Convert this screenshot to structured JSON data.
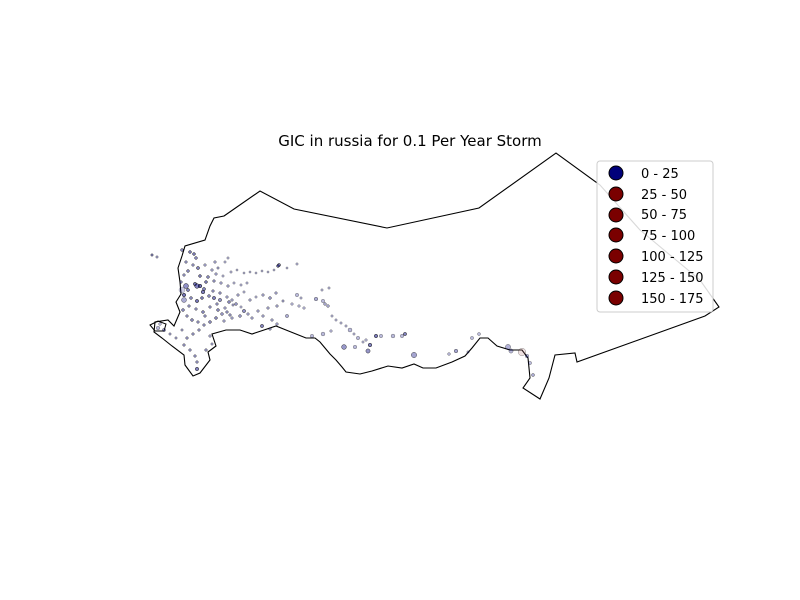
{
  "title": "GIC in russia for 0.1 Per Year Storm",
  "colors": {
    "low": "#00007a",
    "high": "#7a0000",
    "outline": "#000000",
    "legend_edge": "#cccccc"
  },
  "legend": [
    {
      "label": "0 - 25",
      "color": "#00007a"
    },
    {
      "label": "25 - 50",
      "color": "#7a0000"
    },
    {
      "label": "50 - 75",
      "color": "#7a0000"
    },
    {
      "label": "75 - 100",
      "color": "#7a0000"
    },
    {
      "label": "100 - 125",
      "color": "#7a0000"
    },
    {
      "label": "125 - 150",
      "color": "#7a0000"
    },
    {
      "label": "150 - 175",
      "color": "#7a0000"
    }
  ]
}
